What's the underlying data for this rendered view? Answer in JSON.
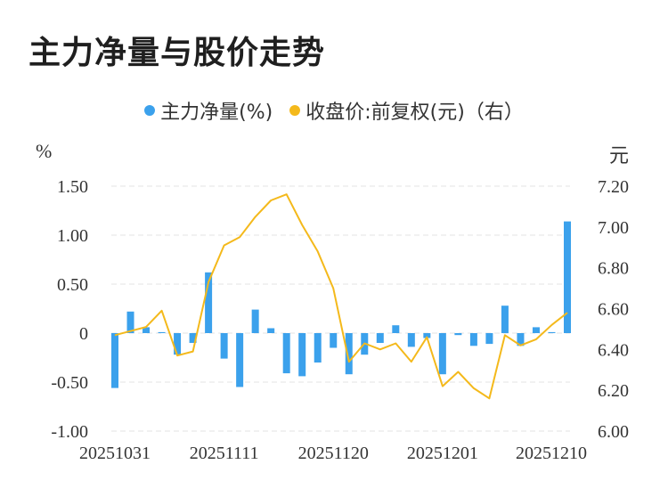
{
  "title": "主力净量与股价走势",
  "legend": {
    "series1": "主力净量(%)",
    "series2": "收盘价:前复权(元)（右）"
  },
  "units": {
    "left": "%",
    "right": "元"
  },
  "colors": {
    "bar": "#3ba1ec",
    "line": "#f4b91b",
    "grid": "#e3e3e3"
  },
  "chart_data": {
    "type": "bar+line",
    "title": "主力净量与股价走势",
    "x_tick_labels": [
      "20251031",
      "20251111",
      "20251120",
      "20251201",
      "20251210"
    ],
    "left_axis": {
      "unit": "%",
      "ylim": [
        -1.0,
        1.5
      ],
      "ticks": [
        "1.50",
        "1.00",
        "0.50",
        "0",
        "-0.50",
        "-1.00"
      ],
      "tick_values": [
        1.5,
        1.0,
        0.5,
        0,
        -0.5,
        -1.0
      ]
    },
    "right_axis": {
      "unit": "元",
      "ylim": [
        6.0,
        7.2
      ],
      "ticks": [
        "7.20",
        "7.00",
        "6.80",
        "6.60",
        "6.40",
        "6.20",
        "6.00"
      ],
      "tick_values": [
        7.2,
        7.0,
        6.8,
        6.6,
        6.4,
        6.2,
        6.0
      ]
    },
    "series": [
      {
        "name": "主力净量(%)",
        "type": "bar",
        "axis": "left",
        "values": [
          -0.56,
          0.22,
          0.06,
          0.01,
          -0.22,
          -0.1,
          0.62,
          -0.26,
          -0.55,
          0.24,
          0.05,
          -0.41,
          -0.44,
          -0.3,
          -0.15,
          -0.42,
          -0.22,
          -0.1,
          0.08,
          -0.14,
          -0.05,
          -0.42,
          -0.02,
          -0.13,
          -0.11,
          0.28,
          -0.13,
          0.06,
          0.01,
          1.14
        ]
      },
      {
        "name": "收盘价:前复权(元)（右）",
        "type": "line",
        "axis": "right",
        "values": [
          6.47,
          6.49,
          6.51,
          6.59,
          6.37,
          6.39,
          6.73,
          6.91,
          6.95,
          7.05,
          7.13,
          7.16,
          7.01,
          6.88,
          6.7,
          6.34,
          6.43,
          6.4,
          6.43,
          6.34,
          6.46,
          6.22,
          6.29,
          6.21,
          6.16,
          6.47,
          6.42,
          6.45,
          6.52,
          6.58
        ]
      }
    ]
  }
}
